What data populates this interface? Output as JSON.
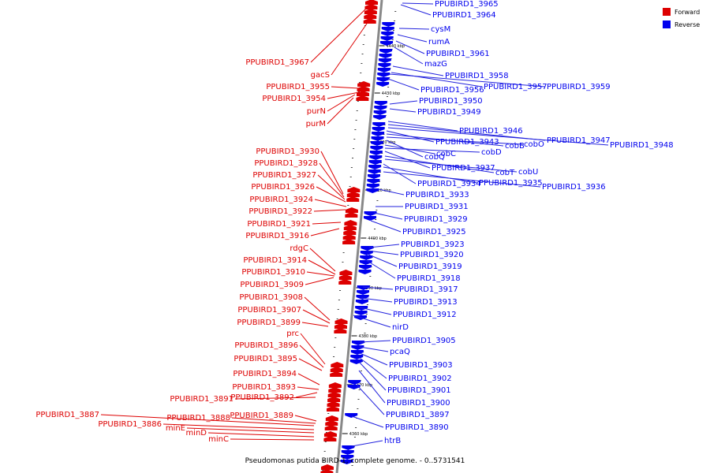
{
  "colors": {
    "forward": "#dd0000",
    "reverse": "#0000ee",
    "backbone": "#888888",
    "leader_forward": "#dd0000",
    "leader_reverse": "#2222dd"
  },
  "legend": {
    "forward": "Forward",
    "reverse": "Reverse"
  },
  "caption": "Pseudomonas putida BIRD-1, complete genome. - 0..5731541",
  "ticks": [
    "4440 kbp",
    "4430 kbp",
    "4420 kbp",
    "4410 kbp",
    "4400 kbp",
    "4390 kbp",
    "4380 kbp",
    "4370 kbp",
    "4360 kbp"
  ],
  "forward_genes": [
    "PPUBIRD1_3967",
    "gacS",
    "PPUBIRD1_3955",
    "PPUBIRD1_3954",
    "purN",
    "purM",
    "PPUBIRD1_3930",
    "PPUBIRD1_3928",
    "PPUBIRD1_3927",
    "PPUBIRD1_3926",
    "PPUBIRD1_3924",
    "PPUBIRD1_3922",
    "PPUBIRD1_3921",
    "PPUBIRD1_3916",
    "rdgC",
    "PPUBIRD1_3914",
    "PPUBIRD1_3910",
    "PPUBIRD1_3909",
    "PPUBIRD1_3908",
    "PPUBIRD1_3907",
    "PPUBIRD1_3899",
    "prc",
    "PPUBIRD1_3896",
    "PPUBIRD1_3895",
    "PPUBIRD1_3894",
    "PPUBIRD1_3893",
    "PPUBIRD1_3892",
    "PPUBIRD1_3891",
    "PPUBIRD1_3887",
    "PPUBIRD1_3888",
    "PPUBIRD1_3889",
    "PPUBIRD1_3886",
    "minE",
    "minD",
    "minC"
  ],
  "reverse_genes": [
    "PPUBIRD1_3965",
    "PPUBIRD1_3964",
    "cysM",
    "rumA",
    "PPUBIRD1_3961",
    "mazG",
    "PPUBIRD1_3958",
    "PPUBIRD1_3957",
    "PPUBIRD1_3959",
    "PPUBIRD1_3956",
    "PPUBIRD1_3950",
    "PPUBIRD1_3949",
    "PPUBIRD1_3946",
    "PPUBIRD1_3947",
    "PPUBIRD1_3948",
    "PPUBIRD1_3943",
    "cobB",
    "cobO",
    "cobQ",
    "cobC",
    "cobD",
    "PPUBIRD1_3937",
    "cobT",
    "cobU",
    "PPUBIRD1_3934",
    "PPUBIRD1_3935",
    "PPUBIRD1_3936",
    "PPUBIRD1_3933",
    "PPUBIRD1_3931",
    "PPUBIRD1_3929",
    "PPUBIRD1_3925",
    "PPUBIRD1_3923",
    "PPUBIRD1_3920",
    "PPUBIRD1_3919",
    "PPUBIRD1_3918",
    "PPUBIRD1_3917",
    "PPUBIRD1_3913",
    "PPUBIRD1_3912",
    "nirD",
    "PPUBIRD1_3905",
    "pcaQ",
    "PPUBIRD1_3903",
    "PPUBIRD1_3902",
    "PPUBIRD1_3901",
    "PPUBIRD1_3900",
    "PPUBIRD1_3897",
    "PPUBIRD1_3890",
    "htrB"
  ]
}
